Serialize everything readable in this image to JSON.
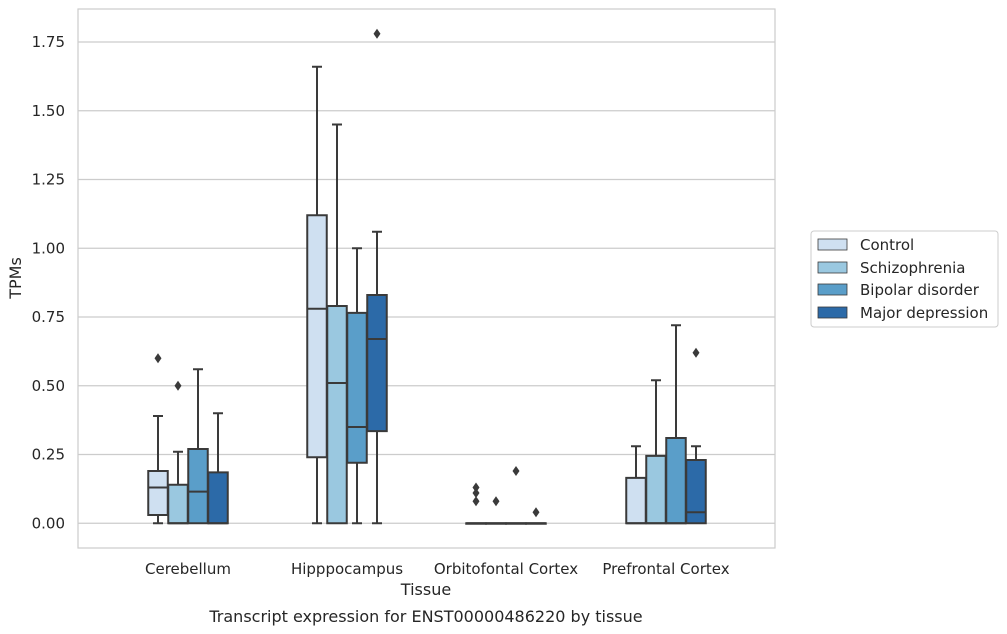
{
  "chart_data": {
    "type": "box",
    "title": "",
    "caption": "Transcript expression for ENST00000486220 by tissue",
    "xlabel": "Tissue",
    "ylabel": "TPMs",
    "ylim": [
      -0.09,
      1.87
    ],
    "yticks": [
      "0.00",
      "0.25",
      "0.50",
      "0.75",
      "1.00",
      "1.25",
      "1.50",
      "1.75"
    ],
    "grid": "horizontal",
    "legend_position": "right",
    "categories": [
      "Cerebellum",
      "Hipppocampus",
      "Orbitofontal Cortex",
      "Prefrontal Cortex"
    ],
    "series": [
      {
        "name": "Control",
        "color": "#cfe0f1",
        "boxes": [
          {
            "q1": 0.03,
            "median": 0.13,
            "q3": 0.19,
            "whislo": 0.0,
            "whishi": 0.39,
            "fliers": [
              0.6
            ]
          },
          {
            "q1": 0.24,
            "median": 0.78,
            "q3": 1.12,
            "whislo": 0.0,
            "whishi": 1.66,
            "fliers": []
          },
          {
            "q1": 0.0,
            "median": 0.0,
            "q3": 0.0,
            "whislo": 0.0,
            "whishi": 0.0,
            "fliers": [
              0.08,
              0.11,
              0.13
            ]
          },
          {
            "q1": 0.0,
            "median": 0.0,
            "q3": 0.165,
            "whislo": 0.0,
            "whishi": 0.28,
            "fliers": []
          }
        ]
      },
      {
        "name": "Schizophrenia",
        "color": "#9ac8e0",
        "boxes": [
          {
            "q1": 0.0,
            "median": 0.0,
            "q3": 0.14,
            "whislo": 0.0,
            "whishi": 0.26,
            "fliers": [
              0.5
            ]
          },
          {
            "q1": 0.0,
            "median": 0.51,
            "q3": 0.79,
            "whislo": 0.0,
            "whishi": 1.45,
            "fliers": []
          },
          {
            "q1": 0.0,
            "median": 0.0,
            "q3": 0.0,
            "whislo": 0.0,
            "whishi": 0.0,
            "fliers": [
              0.08
            ]
          },
          {
            "q1": 0.0,
            "median": 0.0,
            "q3": 0.245,
            "whislo": 0.0,
            "whishi": 0.52,
            "fliers": []
          }
        ]
      },
      {
        "name": "Bipolar disorder",
        "color": "#5a9ec9",
        "boxes": [
          {
            "q1": 0.0,
            "median": 0.115,
            "q3": 0.27,
            "whislo": 0.0,
            "whishi": 0.56,
            "fliers": []
          },
          {
            "q1": 0.22,
            "median": 0.35,
            "q3": 0.765,
            "whislo": 0.0,
            "whishi": 1.0,
            "fliers": []
          },
          {
            "q1": 0.0,
            "median": 0.0,
            "q3": 0.0,
            "whislo": 0.0,
            "whishi": 0.0,
            "fliers": [
              0.19
            ]
          },
          {
            "q1": 0.0,
            "median": 0.0,
            "q3": 0.31,
            "whislo": 0.0,
            "whishi": 0.72,
            "fliers": []
          }
        ]
      },
      {
        "name": "Major depression",
        "color": "#2c6aa8",
        "boxes": [
          {
            "q1": 0.0,
            "median": 0.0,
            "q3": 0.185,
            "whislo": 0.0,
            "whishi": 0.4,
            "fliers": []
          },
          {
            "q1": 0.335,
            "median": 0.67,
            "q3": 0.83,
            "whislo": 0.0,
            "whishi": 1.06,
            "fliers": [
              1.78
            ]
          },
          {
            "q1": 0.0,
            "median": 0.0,
            "q3": 0.0,
            "whislo": 0.0,
            "whishi": 0.0,
            "fliers": [
              0.04
            ]
          },
          {
            "q1": 0.0,
            "median": 0.04,
            "q3": 0.23,
            "whislo": 0.0,
            "whishi": 0.28,
            "fliers": [
              0.62
            ]
          }
        ]
      }
    ]
  },
  "colors": {
    "grid": "#cccccc",
    "frame": "#cccccc",
    "box_edge": "#3a3a3a",
    "text": "#262626"
  }
}
